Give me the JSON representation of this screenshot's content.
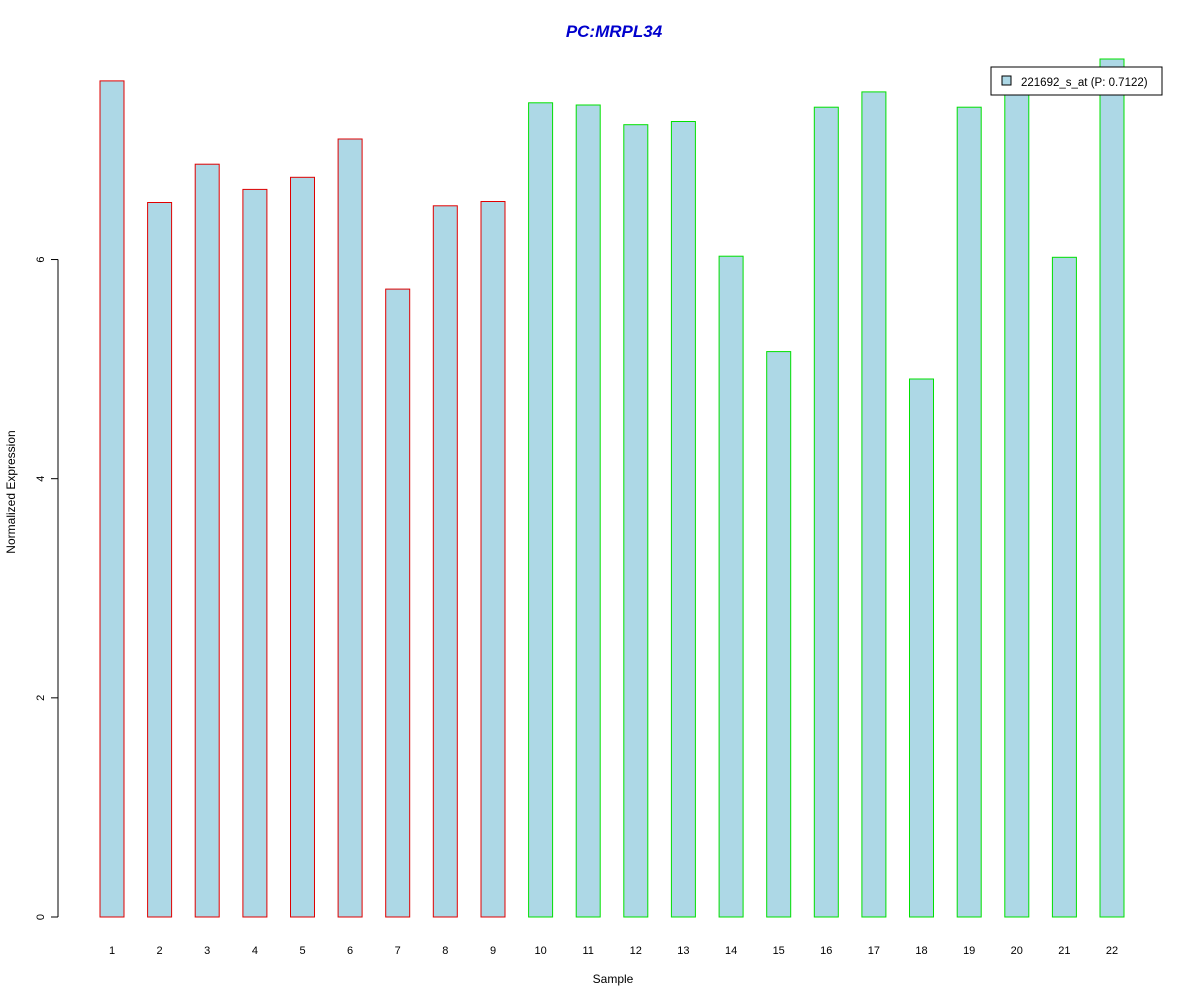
{
  "chart_data": {
    "type": "bar",
    "title": "PC:MRPL34",
    "xlabel": "Sample",
    "ylabel": "Normalized Expression",
    "categories": [
      "1",
      "2",
      "3",
      "4",
      "5",
      "6",
      "7",
      "8",
      "9",
      "10",
      "11",
      "12",
      "13",
      "14",
      "15",
      "16",
      "17",
      "18",
      "19",
      "20",
      "21",
      "22"
    ],
    "values": [
      7.63,
      6.52,
      6.87,
      6.64,
      6.75,
      7.1,
      5.73,
      6.49,
      6.53,
      7.43,
      7.41,
      7.23,
      7.26,
      6.03,
      5.16,
      7.39,
      7.53,
      4.91,
      7.39,
      7.53,
      6.02,
      7.83
    ],
    "ylim": [
      0,
      7.83
    ],
    "yticks": [
      0,
      2,
      4,
      6
    ],
    "series": [
      {
        "name": "221692_s_at (P: 0.7122)",
        "values": [
          7.63,
          6.52,
          6.87,
          6.64,
          6.75,
          7.1,
          5.73,
          6.49,
          6.53,
          7.43,
          7.41,
          7.23,
          7.26,
          6.03,
          5.16,
          7.39,
          7.53,
          4.91,
          7.39,
          7.53,
          6.02,
          7.83
        ]
      }
    ],
    "groups": [
      "a",
      "a",
      "a",
      "a",
      "a",
      "a",
      "a",
      "a",
      "a",
      "b",
      "b",
      "b",
      "b",
      "b",
      "b",
      "b",
      "b",
      "b",
      "b",
      "b",
      "b",
      "b"
    ],
    "legend_position": "top-right",
    "grid": false
  },
  "colors": {
    "title": "#0000CD",
    "bar_fill": "#ADD8E6",
    "border_group_a": "#E00000",
    "border_group_b": "#00E000",
    "axis": "#000000"
  }
}
